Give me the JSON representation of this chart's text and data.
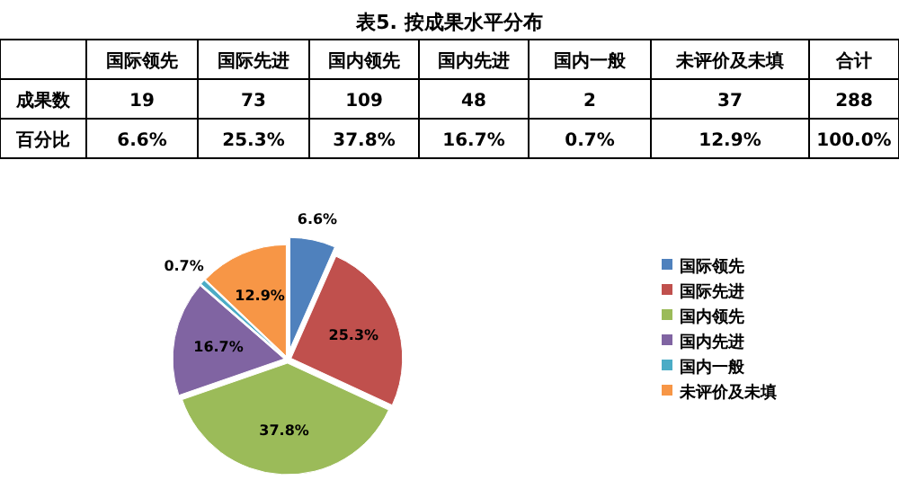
{
  "chart_data": {
    "type": "pie",
    "title": "表5. 按成果水平分布",
    "categories": [
      "国际领先",
      "国际先进",
      "国内领先",
      "国内先进",
      "国内一般",
      "未评价及未填"
    ],
    "values": [
      6.6,
      25.3,
      37.8,
      16.7,
      0.7,
      12.9
    ],
    "value_labels": [
      "6.6%",
      "25.3%",
      "37.8%",
      "16.7%",
      "0.7%",
      "12.9%"
    ],
    "colors": [
      "#4f81bd",
      "#c0504d",
      "#9bbb59",
      "#8064a2",
      "#4bacc6",
      "#f79646"
    ],
    "legend": "right",
    "annotations": [
      "国际领先",
      "国际先进",
      "国内领先",
      "国内先进",
      "国内一般",
      "未评价及未填",
      "合计",
      "成果数",
      "19",
      "73",
      "109",
      "48",
      "2",
      "37",
      "288",
      "百分比",
      "6.6%",
      "25.3%",
      "37.8%",
      "16.7%",
      "0.7%",
      "12.9%",
      "100.0%"
    ]
  }
}
